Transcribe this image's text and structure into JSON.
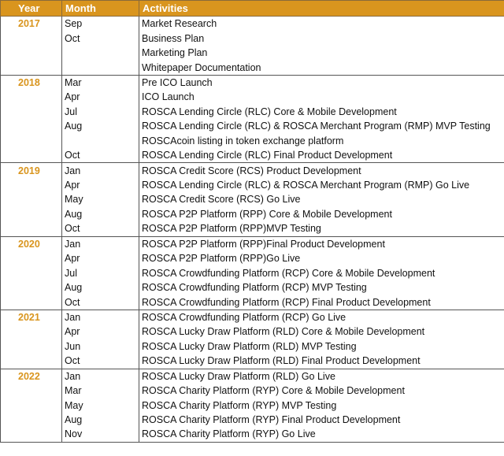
{
  "headers": {
    "year": "Year",
    "month": "Month",
    "activities": "Activities"
  },
  "groups": [
    {
      "year": "2017",
      "rows": [
        {
          "month": "Sep",
          "activity": "Market Research"
        },
        {
          "month": "Oct",
          "activity": "Business Plan"
        },
        {
          "month": "",
          "activity": "Marketing Plan"
        },
        {
          "month": "",
          "activity": "Whitepaper Documentation"
        }
      ]
    },
    {
      "year": "2018",
      "rows": [
        {
          "month": "Mar",
          "activity": "Pre ICO Launch"
        },
        {
          "month": "Apr",
          "activity": "ICO Launch"
        },
        {
          "month": "Jul",
          "activity": "ROSCA Lending Circle (RLC) Core & Mobile Development"
        },
        {
          "month": "Aug",
          "activity": "ROSCA Lending Circle (RLC) & ROSCA Merchant Program (RMP) MVP Testing"
        },
        {
          "month": "",
          "activity": "ROSCAcoin listing in token exchange platform"
        },
        {
          "month": "Oct",
          "activity": "ROSCA Lending Circle (RLC) Final Product Development"
        }
      ]
    },
    {
      "year": "2019",
      "rows": [
        {
          "month": "Jan",
          "activity": "ROSCA Credit Score (RCS) Product Development"
        },
        {
          "month": "Apr",
          "activity": "ROSCA Lending Circle (RLC) & ROSCA Merchant Program (RMP) Go Live"
        },
        {
          "month": "May",
          "activity": "ROSCA Credit Score (RCS) Go Live"
        },
        {
          "month": "Aug",
          "activity": "ROSCA P2P Platform (RPP) Core & Mobile Development"
        },
        {
          "month": "Oct",
          "activity": "ROSCA P2P Platform (RPP)MVP Testing"
        }
      ]
    },
    {
      "year": "2020",
      "rows": [
        {
          "month": "Jan",
          "activity": "ROSCA P2P Platform (RPP)Final Product Development"
        },
        {
          "month": "Apr",
          "activity": "ROSCA P2P Platform (RPP)Go Live"
        },
        {
          "month": "Jul",
          "activity": "ROSCA Crowdfunding Platform (RCP) Core & Mobile Development"
        },
        {
          "month": "Aug",
          "activity": "ROSCA Crowdfunding Platform (RCP) MVP Testing"
        },
        {
          "month": "Oct",
          "activity": "ROSCA Crowdfunding Platform (RCP) Final Product Development"
        }
      ]
    },
    {
      "year": "2021",
      "rows": [
        {
          "month": "Jan",
          "activity": "ROSCA Crowdfunding Platform (RCP) Go Live"
        },
        {
          "month": "Apr",
          "activity": "ROSCA Lucky Draw Platform (RLD) Core & Mobile Development"
        },
        {
          "month": "Jun",
          "activity": "ROSCA Lucky Draw Platform (RLD) MVP Testing"
        },
        {
          "month": "Oct",
          "activity": "ROSCA Lucky Draw Platform (RLD) Final Product Development"
        }
      ]
    },
    {
      "year": "2022",
      "rows": [
        {
          "month": "Jan",
          "activity": "ROSCA Lucky Draw Platform (RLD) Go Live"
        },
        {
          "month": "Mar",
          "activity": "ROSCA Charity Platform (RYP) Core & Mobile Development"
        },
        {
          "month": "May",
          "activity": "ROSCA Charity Platform (RYP) MVP Testing"
        },
        {
          "month": "Aug",
          "activity": "ROSCA Charity Platform (RYP) Final Product Development"
        },
        {
          "month": "Nov",
          "activity": "ROSCA Charity Platform (RYP) Go Live"
        }
      ]
    }
  ]
}
